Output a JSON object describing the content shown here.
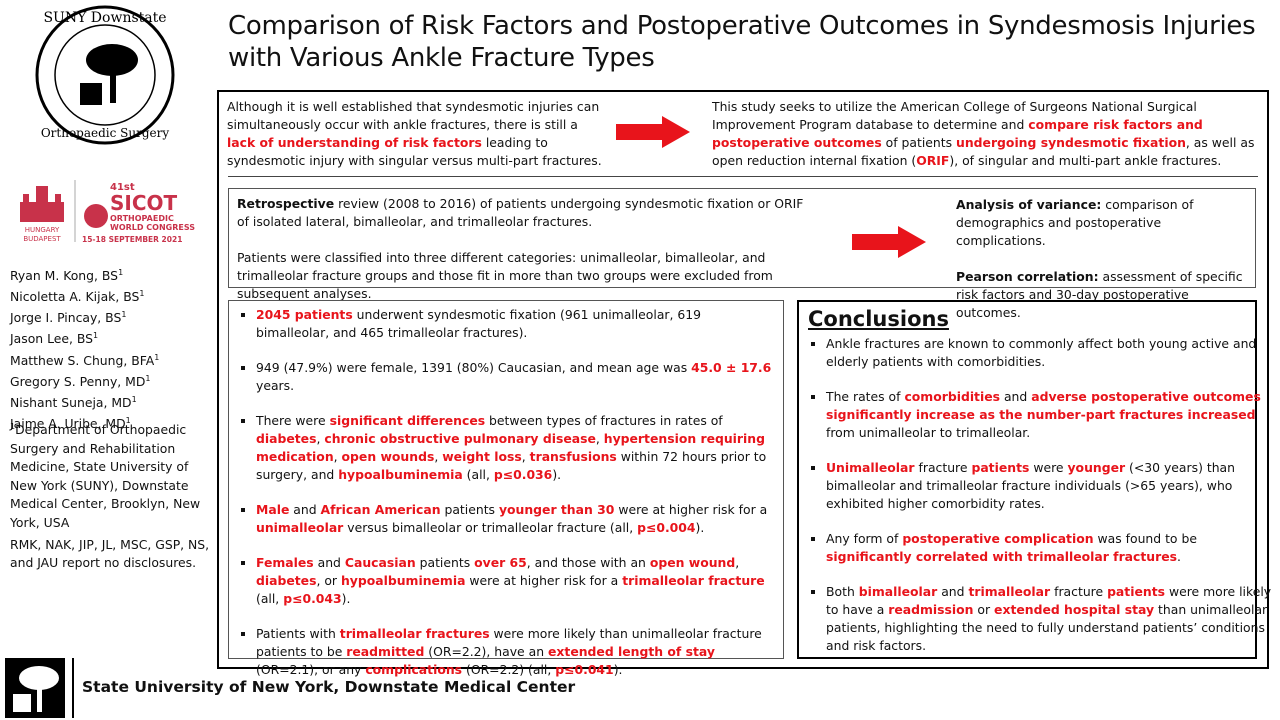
{
  "header": {
    "title_lines": [
      "Comparison of Risk Factors and Postoperative Outcomes in Syndesmosis Injuries",
      "with Various Ankle Fracture Types"
    ]
  },
  "logo": {
    "top": "SUNY Downstate",
    "bottom": "Orthopaedic Surgery"
  },
  "congress": {
    "number": "41st",
    "name": "SICOT",
    "line1": "ORTHOPAEDIC",
    "line2": "WORLD CONGRESS",
    "dates": "15-18 SEPTEMBER 2021",
    "country": "HUNGARY",
    "city": "BUDAPEST"
  },
  "authors": [
    {
      "name": "Ryan M. Kong, BS",
      "sup": "1"
    },
    {
      "name": "Nicoletta A. Kijak, BS",
      "sup": "1"
    },
    {
      "name": "Jorge I. Pincay, BS",
      "sup": "1"
    },
    {
      "name": "Jason Lee, BS",
      "sup": "1"
    },
    {
      "name": "Matthew S. Chung, BFA",
      "sup": "1"
    },
    {
      "name": "Gregory S. Penny, MD",
      "sup": "1"
    },
    {
      "name": "Nishant Suneja, MD",
      "sup": "1"
    },
    {
      "name": "Jaime A. Uribe, MD",
      "sup": "1"
    }
  ],
  "affiliation": {
    "sup": "1",
    "text": "Department of Orthopaedic Surgery and Rehabilitation Medicine, State University of New York (SUNY), Downstate Medical Center, Brooklyn, New York, USA"
  },
  "disclosure": "RMK, NAK, JIP, JL, MSC, GSP, NS, and JAU report no disclosures.",
  "intro": {
    "left": {
      "runs": [
        {
          "text": "Although it is well established that syndesmotic injuries can simultaneously occur with ankle fractures, there is still a "
        },
        {
          "text": "lack of understanding of risk factors",
          "style": "red"
        },
        {
          "text": " leading to syndesmotic injury with singular versus multi-part fractures."
        }
      ]
    },
    "right": {
      "runs": [
        {
          "text": "This study seeks to utilize the American College of Surgeons National Surgical Improvement Program database to determine and "
        },
        {
          "text": "compare risk factors and postoperative outcomes",
          "style": "red"
        },
        {
          "text": " of patients "
        },
        {
          "text": "undergoing syndesmotic fixation",
          "style": "red"
        },
        {
          "text": ", as well as open reduction internal fixation ("
        },
        {
          "text": "ORIF",
          "style": "red"
        },
        {
          "text": "), of singular and multi-part ankle fractures."
        }
      ]
    }
  },
  "methods": {
    "left": [
      {
        "runs": [
          {
            "text": "Retrospective",
            "style": "bold"
          },
          {
            "text": " review (2008 to 2016)  of patients undergoing syndesmotic fixation or ORIF of isolated lateral, bimalleolar, and trimalleolar fractures."
          }
        ]
      },
      {
        "runs": [
          {
            "text": "Patients were classified into three different categories: unimalleolar, bimalleolar, and trimalleolar fracture groups and those fit in more than two groups were excluded from subsequent analyses."
          }
        ]
      }
    ],
    "right": [
      {
        "runs": [
          {
            "text": "Analysis of variance:",
            "style": "bold"
          },
          {
            "text": " comparison of demographics and postoperative complications."
          }
        ]
      },
      {
        "runs": [
          {
            "text": "Pearson correlation:",
            "style": "bold"
          },
          {
            "text": " assessment of specific risk factors and 30-day postoperative outcomes."
          }
        ]
      }
    ]
  },
  "results": [
    {
      "runs": [
        {
          "text": "2045 patients",
          "style": "red"
        },
        {
          "text": " underwent syndesmotic fixation (961 unimalleolar, 619 bimalleolar, and 465  trimalleolar fractures)."
        }
      ]
    },
    {
      "runs": [
        {
          "text": "949  (47.9%) were female, 1391 (80%) Caucasian, and mean age was "
        },
        {
          "text": "45.0 ± 17.6",
          "style": "red"
        },
        {
          "text": " years."
        }
      ]
    },
    {
      "runs": [
        {
          "text": "There were "
        },
        {
          "text": "significant differences",
          "style": "red"
        },
        {
          "text": " between types of fractures in rates of "
        },
        {
          "text": "diabetes",
          "style": "red"
        },
        {
          "text": ", "
        },
        {
          "text": "chronic obstructive pulmonary disease",
          "style": "red"
        },
        {
          "text": ", "
        },
        {
          "text": "hypertension requiring medication",
          "style": "red"
        },
        {
          "text": ", "
        },
        {
          "text": "open wounds",
          "style": "red"
        },
        {
          "text": ", "
        },
        {
          "text": "weight loss",
          "style": "red"
        },
        {
          "text": ", "
        },
        {
          "text": "transfusions",
          "style": "red"
        },
        {
          "text": " within 72 hours prior to surgery, and "
        },
        {
          "text": "hypoalbuminemia",
          "style": "red"
        },
        {
          "text": " (all, "
        },
        {
          "text": "p≤0.036",
          "style": "red"
        },
        {
          "text": ")."
        }
      ]
    },
    {
      "runs": [
        {
          "text": "Male",
          "style": "red"
        },
        {
          "text": " and "
        },
        {
          "text": "African American",
          "style": "red"
        },
        {
          "text": " patients "
        },
        {
          "text": "younger than 30",
          "style": "red"
        },
        {
          "text": " were at higher risk for a "
        },
        {
          "text": "unimalleolar",
          "style": "red"
        },
        {
          "text": " versus bimalleolar or trimalleolar fracture (all, "
        },
        {
          "text": "p≤0.004",
          "style": "red"
        },
        {
          "text": ")."
        }
      ]
    },
    {
      "runs": [
        {
          "text": "Females",
          "style": "red"
        },
        {
          "text": " and "
        },
        {
          "text": "Caucasian",
          "style": "red"
        },
        {
          "text": " patients "
        },
        {
          "text": "over 65",
          "style": "red"
        },
        {
          "text": ", and those with an "
        },
        {
          "text": "open wound",
          "style": "red"
        },
        {
          "text": ", "
        },
        {
          "text": "diabetes",
          "style": "red"
        },
        {
          "text": ", or "
        },
        {
          "text": "hypoalbuminemia",
          "style": "red"
        },
        {
          "text": " were at higher risk for a "
        },
        {
          "text": "trimalleolar fracture",
          "style": "red"
        },
        {
          "text": " (all, "
        },
        {
          "text": "p≤0.043",
          "style": "red"
        },
        {
          "text": ")."
        }
      ]
    },
    {
      "runs": [
        {
          "text": "Patients with "
        },
        {
          "text": "trimalleolar fractures",
          "style": "red"
        },
        {
          "text": " were more likely than unimalleolar fracture patients to be "
        },
        {
          "text": "readmitted",
          "style": "red"
        },
        {
          "text": " (OR=2.2), have an "
        },
        {
          "text": "extended length of stay",
          "style": "red"
        },
        {
          "text": " (OR=2.1), or any "
        },
        {
          "text": "complications",
          "style": "red"
        },
        {
          "text": " (OR=2.2) (all, "
        },
        {
          "text": "p≤0.041",
          "style": "red"
        },
        {
          "text": ")."
        }
      ]
    }
  ],
  "conclusions": {
    "heading": "Conclusions",
    "items": [
      {
        "runs": [
          {
            "text": "Ankle fractures are known to commonly affect both young active and elderly patients with comorbidities."
          }
        ]
      },
      {
        "runs": [
          {
            "text": "The rates of "
          },
          {
            "text": "comorbidities",
            "style": "red"
          },
          {
            "text": " and "
          },
          {
            "text": "adverse postoperative outcomes significantly increase as the number-part fractures increased",
            "style": "red"
          },
          {
            "text": " from unimalleolar to trimalleolar."
          }
        ]
      },
      {
        "runs": [
          {
            "text": "Unimalleolar",
            "style": "red"
          },
          {
            "text": " fracture "
          },
          {
            "text": "patients",
            "style": "red"
          },
          {
            "text": " were "
          },
          {
            "text": "younger",
            "style": "red"
          },
          {
            "text": " (<30 years) than bimalleolar and trimalleolar fracture individuals (>65 years), who exhibited higher comorbidity rates."
          }
        ]
      },
      {
        "runs": [
          {
            "text": "Any form of "
          },
          {
            "text": "postoperative complication",
            "style": "red"
          },
          {
            "text": " was found to be "
          },
          {
            "text": "significantly correlated with trimalleolar fractures",
            "style": "red"
          },
          {
            "text": "."
          }
        ]
      },
      {
        "runs": [
          {
            "text": "Both "
          },
          {
            "text": "bimalleolar",
            "style": "red"
          },
          {
            "text": " and "
          },
          {
            "text": "trimalleolar",
            "style": "red"
          },
          {
            "text": " fracture "
          },
          {
            "text": "patients",
            "style": "red"
          },
          {
            "text": " were more likely to have a "
          },
          {
            "text": "readmission",
            "style": "red"
          },
          {
            "text": " or "
          },
          {
            "text": "extended hospital stay",
            "style": "red"
          },
          {
            "text": " than unimalleolar patients, highlighting the need to fully understand patients’ conditions and risk factors."
          }
        ]
      }
    ]
  },
  "footer": {
    "institution": "State University of New York, Downstate Medical Center"
  }
}
